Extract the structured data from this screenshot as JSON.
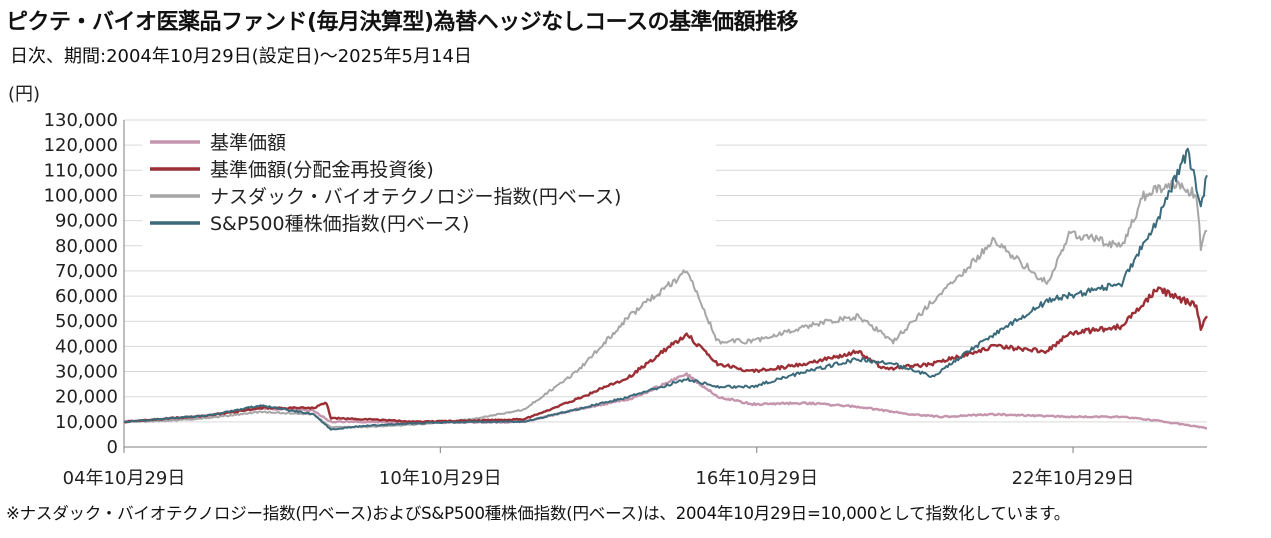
{
  "header": {
    "title": "ピクテ・バイオ医薬品ファンド(毎月決算型)為替ヘッジなしコースの基準価額推移",
    "subtitle": "日次、期間:2004年10月29日(設定日)〜2025年5月14日"
  },
  "footnote": "※ナスダック・バイオテクノロジー指数(円ベース)およびS&P500種株価指数(円ベース)は、2004年10月29日=10,000として指数化しています。",
  "chart_data": {
    "type": "line",
    "ylabel": "(円)",
    "ylim": [
      0,
      130000
    ],
    "y_ticks": [
      0,
      10000,
      20000,
      30000,
      40000,
      50000,
      60000,
      70000,
      80000,
      90000,
      100000,
      110000,
      120000,
      130000
    ],
    "y_tick_labels": [
      "0",
      "10,000",
      "20,000",
      "30,000",
      "40,000",
      "50,000",
      "60,000",
      "70,000",
      "80,000",
      "90,000",
      "100,000",
      "110,000",
      "120,000",
      "130,000"
    ],
    "xlim": [
      "2004-10-29",
      "2025-05-14"
    ],
    "x_ticks": [
      "2004-10-29",
      "2010-10-29",
      "2016-10-29",
      "2022-10-29"
    ],
    "x_tick_labels": [
      "04年10月29日",
      "10年10月29日",
      "16年10月29日",
      "22年10月29日"
    ],
    "grid": true,
    "legend_position": "top-left",
    "series": [
      {
        "name": "基準価額",
        "color": "#c495ad",
        "points": [
          [
            "2004-10-29",
            10000
          ],
          [
            "2005-10",
            11000
          ],
          [
            "2006-06",
            12500
          ],
          [
            "2007-06",
            15500
          ],
          [
            "2008-06",
            14500
          ],
          [
            "2008-10",
            10000
          ],
          [
            "2009-06",
            10000
          ],
          [
            "2010-06",
            9800
          ],
          [
            "2011-06",
            9800
          ],
          [
            "2012-06",
            10000
          ],
          [
            "2013-06",
            15000
          ],
          [
            "2014-06",
            19000
          ],
          [
            "2015-07",
            29000
          ],
          [
            "2016-02",
            20000
          ],
          [
            "2016-10",
            17000
          ],
          [
            "2017-10",
            17500
          ],
          [
            "2018-10",
            16000
          ],
          [
            "2019-10",
            13000
          ],
          [
            "2020-05",
            12000
          ],
          [
            "2021-05",
            13000
          ],
          [
            "2022-10",
            12000
          ],
          [
            "2023-10",
            12000
          ],
          [
            "2024-06",
            10500
          ],
          [
            "2025-05-14",
            7500
          ]
        ]
      },
      {
        "name": "基準価額(分配金再投資後)",
        "color": "#9b2f35",
        "points": [
          [
            "2004-10-29",
            10000
          ],
          [
            "2005-10",
            11500
          ],
          [
            "2006-06",
            12500
          ],
          [
            "2007-06",
            15500
          ],
          [
            "2008-06",
            15500
          ],
          [
            "2008-09",
            17500
          ],
          [
            "2008-10",
            11500
          ],
          [
            "2009-06",
            11000
          ],
          [
            "2010-06",
            10000
          ],
          [
            "2011-06",
            10500
          ],
          [
            "2012-06",
            11000
          ],
          [
            "2013-06",
            19000
          ],
          [
            "2014-06",
            28000
          ],
          [
            "2015-07",
            45000
          ],
          [
            "2016-02",
            33000
          ],
          [
            "2016-10",
            30000
          ],
          [
            "2017-10",
            33000
          ],
          [
            "2018-10",
            38000
          ],
          [
            "2019-04",
            31000
          ],
          [
            "2020-03",
            33000
          ],
          [
            "2021-05",
            40000
          ],
          [
            "2022-05",
            38000
          ],
          [
            "2022-10",
            45000
          ],
          [
            "2023-10",
            48000
          ],
          [
            "2024-06",
            63000
          ],
          [
            "2025-03",
            56000
          ],
          [
            "2025-04",
            47000
          ],
          [
            "2025-05-14",
            52000
          ]
        ]
      },
      {
        "name": "ナスダック・バイオテクノロジー指数(円ベース)",
        "color": "#a6a6a6",
        "points": [
          [
            "2004-10-29",
            10000
          ],
          [
            "2005-10",
            10500
          ],
          [
            "2006-06",
            11500
          ],
          [
            "2007-06",
            14000
          ],
          [
            "2008-06",
            13000
          ],
          [
            "2008-10",
            8000
          ],
          [
            "2009-06",
            8000
          ],
          [
            "2010-06",
            9000
          ],
          [
            "2011-06",
            11000
          ],
          [
            "2012-06",
            15000
          ],
          [
            "2013-06",
            30000
          ],
          [
            "2014-06",
            52000
          ],
          [
            "2015-07",
            70000
          ],
          [
            "2016-02",
            42000
          ],
          [
            "2016-10",
            42000
          ],
          [
            "2017-10",
            48000
          ],
          [
            "2018-10",
            52000
          ],
          [
            "2019-06",
            42000
          ],
          [
            "2020-03",
            58000
          ],
          [
            "2021-05",
            82000
          ],
          [
            "2022-05",
            65000
          ],
          [
            "2022-10",
            85000
          ],
          [
            "2023-10",
            80000
          ],
          [
            "2024-03",
            100000
          ],
          [
            "2024-10",
            105000
          ],
          [
            "2025-03",
            100000
          ],
          [
            "2025-04",
            80000
          ],
          [
            "2025-05-14",
            86000
          ]
        ]
      },
      {
        "name": "S&P500種株価指数(円ベース)",
        "color": "#3b6a7b",
        "points": [
          [
            "2004-10-29",
            10000
          ],
          [
            "2005-10",
            11500
          ],
          [
            "2006-06",
            12500
          ],
          [
            "2007-06",
            16500
          ],
          [
            "2008-06",
            13000
          ],
          [
            "2008-10",
            7000
          ],
          [
            "2009-06",
            8500
          ],
          [
            "2010-06",
            9500
          ],
          [
            "2011-06",
            10000
          ],
          [
            "2012-06",
            10000
          ],
          [
            "2013-06",
            15000
          ],
          [
            "2014-06",
            20000
          ],
          [
            "2015-07",
            27000
          ],
          [
            "2016-02",
            24000
          ],
          [
            "2016-10",
            24000
          ],
          [
            "2017-10",
            30000
          ],
          [
            "2018-10",
            35000
          ],
          [
            "2019-06",
            33000
          ],
          [
            "2020-03",
            28000
          ],
          [
            "2021-05",
            45000
          ],
          [
            "2022-05",
            58000
          ],
          [
            "2022-10",
            60000
          ],
          [
            "2023-10",
            65000
          ],
          [
            "2024-06",
            90000
          ],
          [
            "2025-01",
            118000
          ],
          [
            "2025-04",
            95000
          ],
          [
            "2025-05-14",
            108000
          ]
        ]
      }
    ]
  }
}
